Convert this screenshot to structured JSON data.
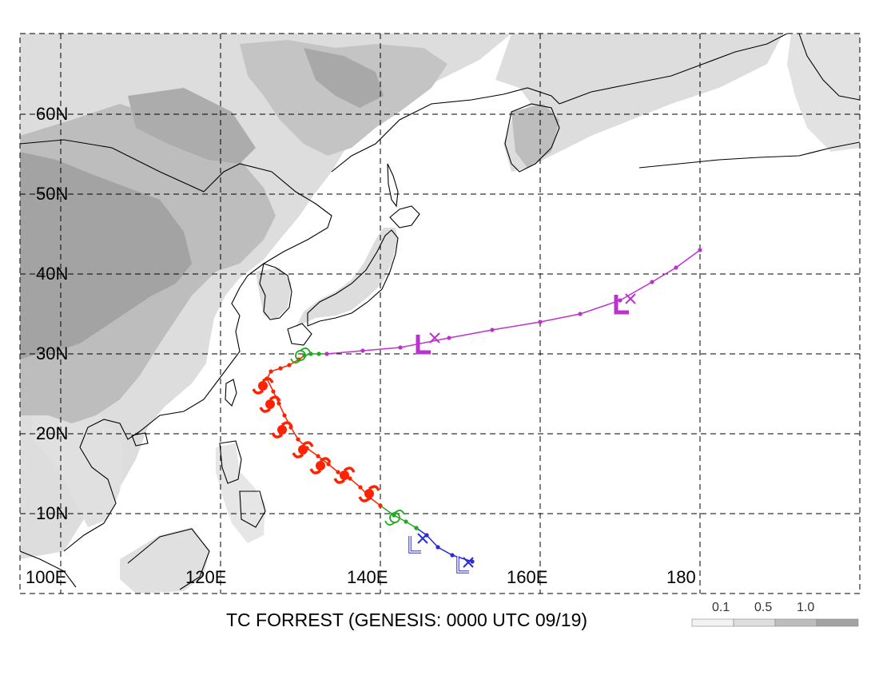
{
  "map": {
    "title": "TC FORREST (GENESIS: 0000 UTC 09/19)",
    "lon_range": [
      100,
      200
    ],
    "lat_range": [
      3,
      70
    ],
    "longitude_labels": [
      "100E",
      "120E",
      "140E",
      "160E",
      "180"
    ],
    "latitude_labels": [
      "10N",
      "20N",
      "30N",
      "40N",
      "50N",
      "60N"
    ],
    "grid": "dashed, every 20 degrees longitude and 10 degrees latitude",
    "shading": "grey terrain shading over land",
    "colors": {
      "land_shade_light": "#dddddd",
      "land_shade_mid": "#bdbdbd",
      "land_shade_dark": "#a3a3a3",
      "coastline": "#000000",
      "track_weak": "#2b2bd8",
      "track_storm": "#1faa1f",
      "track_typhoon": "#ff2200",
      "track_extratropical": "#bb33cc"
    }
  },
  "legend": {
    "labels": [
      "0.1",
      "0.5",
      "1.0"
    ]
  },
  "track": {
    "segments": [
      {
        "stage": "weak",
        "points": [
          [
            151.5,
            7.0
          ],
          [
            149.0,
            7.8
          ],
          [
            147.2,
            8.8
          ],
          [
            145.8,
            10.3
          ],
          [
            144.5,
            11.2
          ]
        ]
      },
      {
        "stage": "storm",
        "points": [
          [
            144.5,
            11.2
          ],
          [
            143.2,
            12.0
          ],
          [
            141.7,
            12.8
          ],
          [
            140.0,
            14.0
          ]
        ]
      },
      {
        "stage": "typhoon",
        "points": [
          [
            140.0,
            14.0
          ],
          [
            138.7,
            15.0
          ],
          [
            137.5,
            16.3
          ],
          [
            136.2,
            17.4
          ],
          [
            134.7,
            18.2
          ],
          [
            133.5,
            19.2
          ],
          [
            132.2,
            20.2
          ],
          [
            130.8,
            21.2
          ],
          [
            129.7,
            22.3
          ],
          [
            128.8,
            23.8
          ],
          [
            128.0,
            25.3
          ],
          [
            127.3,
            26.8
          ],
          [
            126.6,
            28.3
          ],
          [
            125.8,
            29.9
          ],
          [
            126.3,
            30.8
          ],
          [
            127.5,
            31.2
          ],
          [
            128.6,
            31.6
          ],
          [
            129.8,
            32.3
          ],
          [
            130.5,
            32.8
          ]
        ]
      },
      {
        "stage": "storm",
        "points": [
          [
            130.5,
            32.8
          ],
          [
            131.3,
            33.0
          ],
          [
            132.3,
            33.0
          ],
          [
            133.3,
            33.0
          ]
        ]
      },
      {
        "stage": "extratropical",
        "points": [
          [
            133.3,
            33.0
          ],
          [
            137.8,
            33.4
          ],
          [
            142.5,
            33.8
          ],
          [
            148.6,
            35.0
          ],
          [
            154.0,
            36.0
          ],
          [
            160.0,
            37.0
          ],
          [
            165.0,
            38.0
          ],
          [
            170.0,
            39.7
          ],
          [
            174.0,
            42.0
          ],
          [
            177.0,
            43.8
          ],
          [
            180.0,
            46.0
          ]
        ]
      }
    ],
    "symbols": [
      {
        "type": "weak-low",
        "lon": 150.5,
        "lat": 6.5
      },
      {
        "type": "weak-low",
        "lon": 144.5,
        "lat": 9.0
      },
      {
        "type": "tropical-storm",
        "lon": 141.8,
        "lat": 12.5
      },
      {
        "type": "typhoon",
        "lon": 138.6,
        "lat": 15.5
      },
      {
        "type": "typhoon",
        "lon": 135.5,
        "lat": 17.8
      },
      {
        "type": "typhoon",
        "lon": 132.5,
        "lat": 19.0
      },
      {
        "type": "typhoon",
        "lon": 130.3,
        "lat": 21.0
      },
      {
        "type": "typhoon",
        "lon": 127.7,
        "lat": 23.5
      },
      {
        "type": "typhoon",
        "lon": 126.2,
        "lat": 26.7
      },
      {
        "type": "typhoon",
        "lon": 125.3,
        "lat": 29.0
      },
      {
        "type": "tropical-storm",
        "lon": 130.0,
        "lat": 32.8
      },
      {
        "type": "extratropical-low",
        "lon": 145.5,
        "lat": 34.0
      },
      {
        "type": "extratropical-low",
        "lon": 170.3,
        "lat": 39.0
      }
    ],
    "markers_x": [
      {
        "lon": 151.0,
        "lat": 6.9,
        "color": "track_weak"
      },
      {
        "lon": 145.3,
        "lat": 9.9,
        "color": "track_weak"
      },
      {
        "lon": 146.8,
        "lat": 35.0,
        "color": "track_extratropical"
      },
      {
        "lon": 171.3,
        "lat": 39.9,
        "color": "track_extratropical"
      }
    ]
  }
}
